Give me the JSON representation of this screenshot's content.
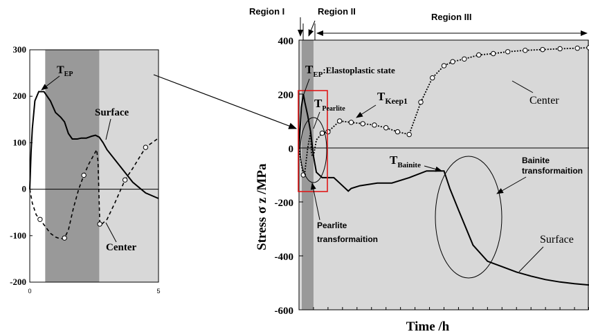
{
  "chart_data": [
    {
      "type": "line",
      "title": "",
      "xlabel": "Time /h",
      "ylabel": "Stress σ z /MPa",
      "xlim": [
        0,
        100
      ],
      "ylim": [
        -600,
        400
      ],
      "yticks": [
        "400",
        "200",
        "0",
        "-200",
        "-400",
        "-600"
      ],
      "regions": [
        {
          "label": "Region I",
          "x_start": 0,
          "x_end": 1.5,
          "shade": "#999999"
        },
        {
          "label": "Region II",
          "x_start": 1.5,
          "x_end": 5,
          "shade": "#999999"
        },
        {
          "label": "Region III",
          "x_start": 5,
          "x_end": 100,
          "shade": "#d8d8d8"
        }
      ],
      "series": [
        {
          "name": "Surface",
          "style": "solid",
          "x": [
            0,
            0.8,
            1.5,
            2.0,
            3.0,
            4.0,
            5.0,
            6.0,
            8.0,
            12.0,
            14.0,
            17.0,
            18.0,
            21.0,
            27.0,
            32.0,
            38.0,
            44.0,
            50.0,
            52.0,
            55.0,
            60.0,
            65.0,
            70.0,
            75.0,
            80.0,
            85.0,
            90.0,
            95.0,
            100.0
          ],
          "y": [
            0,
            150,
            200,
            170,
            120,
            60,
            -30,
            -90,
            -110,
            -110,
            -130,
            -160,
            -150,
            -140,
            -130,
            -130,
            -110,
            -85,
            -85,
            -150,
            -230,
            -360,
            -420,
            -440,
            -460,
            -475,
            -488,
            -497,
            -503,
            -508
          ]
        },
        {
          "name": "Center",
          "style": "dotted",
          "x": [
            0,
            0.8,
            1.5,
            2.0,
            3.0,
            4.0,
            4.3,
            4.6,
            5.0,
            6.0,
            8.0,
            10.0,
            14.0,
            18.0,
            22.0,
            26.0,
            30.0,
            34.0,
            38.0,
            42.0,
            46.0,
            50.0,
            53.0,
            57.0,
            62.0,
            67.0,
            72.0,
            78.0,
            84.0,
            90.0,
            96.0,
            100.0
          ],
          "y": [
            0,
            -60,
            -100,
            -90,
            0,
            60,
            -20,
            -30,
            -30,
            30,
            55,
            60,
            100,
            95,
            90,
            85,
            75,
            60,
            50,
            170,
            260,
            305,
            320,
            330,
            345,
            350,
            357,
            362,
            365,
            368,
            370,
            372
          ]
        }
      ],
      "annotations": [
        "T",
        "EP",
        ":Elastoplastic state",
        "T",
        "Pearlite",
        "T",
        "Keep1",
        "T",
        "Bainite",
        "Center",
        "Surface",
        "Pearlite",
        "transformaition",
        "Bainite",
        "transformaition"
      ]
    },
    {
      "type": "line",
      "title": "",
      "xlabel": "",
      "ylabel": "",
      "xlim": [
        0,
        5
      ],
      "ylim": [
        -200,
        300
      ],
      "xticks": [
        "0",
        "5"
      ],
      "yticks": [
        "300",
        "200",
        "100",
        "0",
        "-100",
        "-200"
      ],
      "shaded_intervals": [
        {
          "x_start": 0.6,
          "x_end": 2.7,
          "shade": "#999999"
        },
        {
          "x_start": 2.7,
          "x_end": 5,
          "shade": "#d8d8d8"
        }
      ],
      "series": [
        {
          "name": "Surface",
          "style": "solid",
          "x": [
            0,
            0.05,
            0.1,
            0.2,
            0.35,
            0.55,
            0.8,
            1.0,
            1.2,
            1.35,
            1.5,
            1.65,
            1.85,
            2.0,
            2.2,
            2.4,
            2.55,
            2.7,
            2.85,
            3.0,
            3.5,
            4.0,
            4.5,
            5.0
          ],
          "y": [
            0,
            80,
            130,
            190,
            210,
            210,
            190,
            165,
            155,
            145,
            120,
            108,
            108,
            110,
            110,
            114,
            116,
            112,
            100,
            85,
            50,
            15,
            -8,
            -20
          ]
        },
        {
          "name": "Center",
          "style": "dashed",
          "x": [
            0,
            0.1,
            0.25,
            0.4,
            0.6,
            0.8,
            1.0,
            1.2,
            1.35,
            1.5,
            1.7,
            1.9,
            2.1,
            2.3,
            2.5,
            2.6,
            2.65,
            2.72,
            2.8,
            2.9,
            3.0,
            3.3,
            3.7,
            4.0,
            4.5,
            5.0
          ],
          "y": [
            0,
            -30,
            -55,
            -65,
            -80,
            -95,
            -103,
            -107,
            -105,
            -88,
            -40,
            0,
            30,
            55,
            75,
            85,
            60,
            -75,
            -75,
            -70,
            -65,
            -30,
            20,
            45,
            90,
            110
          ]
        }
      ],
      "annotations": [
        "T",
        "EP",
        "Surface",
        "Center"
      ]
    }
  ]
}
